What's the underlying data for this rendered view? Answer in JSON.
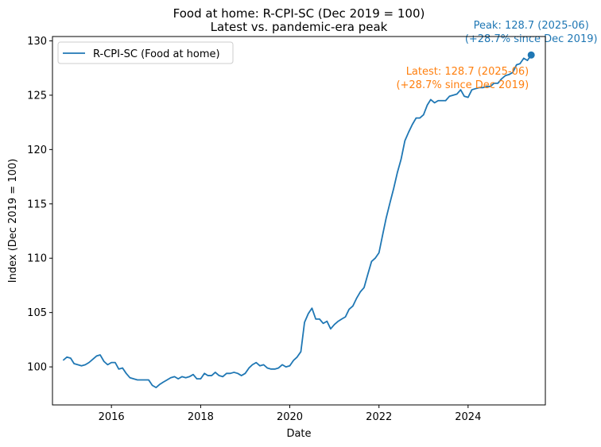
{
  "chart_data": {
    "type": "line",
    "title": "Food at home: R-CPI-SC (Dec 2019 = 100)",
    "subtitle": "Latest vs. pandemic-era peak",
    "xlabel": "Date",
    "ylabel": "Index (Dec 2019 = 100)",
    "xlim": [
      "2014-09-05",
      "2025-09-25"
    ],
    "ylim": [
      96.5,
      130.4
    ],
    "x_ticks": [
      {
        "date": "2016-01-01",
        "label": "2016"
      },
      {
        "date": "2018-01-01",
        "label": "2018"
      },
      {
        "date": "2020-01-01",
        "label": "2020"
      },
      {
        "date": "2022-01-01",
        "label": "2022"
      },
      {
        "date": "2024-01-01",
        "label": "2024"
      }
    ],
    "y_ticks": [
      {
        "value": 100,
        "label": "100"
      },
      {
        "value": 105,
        "label": "105"
      },
      {
        "value": 110,
        "label": "110"
      },
      {
        "value": 115,
        "label": "115"
      },
      {
        "value": 120,
        "label": "120"
      },
      {
        "value": 125,
        "label": "125"
      },
      {
        "value": 130,
        "label": "130"
      }
    ],
    "grid": false,
    "legend": {
      "position": "top-left",
      "entries": [
        "R-CPI-SC (Food at home)"
      ]
    },
    "series": [
      {
        "name": "R-CPI-SC (Food at home)",
        "color": "#1f77b4",
        "x": [
          "2014-12",
          "2015-01",
          "2015-02",
          "2015-03",
          "2015-04",
          "2015-05",
          "2015-06",
          "2015-07",
          "2015-08",
          "2015-09",
          "2015-10",
          "2015-11",
          "2015-12",
          "2016-01",
          "2016-02",
          "2016-03",
          "2016-04",
          "2016-05",
          "2016-06",
          "2016-07",
          "2016-08",
          "2016-09",
          "2016-10",
          "2016-11",
          "2016-12",
          "2017-01",
          "2017-02",
          "2017-03",
          "2017-04",
          "2017-05",
          "2017-06",
          "2017-07",
          "2017-08",
          "2017-09",
          "2017-10",
          "2017-11",
          "2017-12",
          "2018-01",
          "2018-02",
          "2018-03",
          "2018-04",
          "2018-05",
          "2018-06",
          "2018-07",
          "2018-08",
          "2018-09",
          "2018-10",
          "2018-11",
          "2018-12",
          "2019-01",
          "2019-02",
          "2019-03",
          "2019-04",
          "2019-05",
          "2019-06",
          "2019-07",
          "2019-08",
          "2019-09",
          "2019-10",
          "2019-11",
          "2019-12",
          "2020-01",
          "2020-02",
          "2020-03",
          "2020-04",
          "2020-05",
          "2020-06",
          "2020-07",
          "2020-08",
          "2020-09",
          "2020-10",
          "2020-11",
          "2020-12",
          "2021-01",
          "2021-02",
          "2021-03",
          "2021-04",
          "2021-05",
          "2021-06",
          "2021-07",
          "2021-08",
          "2021-09",
          "2021-10",
          "2021-11",
          "2021-12",
          "2022-01",
          "2022-02",
          "2022-03",
          "2022-04",
          "2022-05",
          "2022-06",
          "2022-07",
          "2022-08",
          "2022-09",
          "2022-10",
          "2022-11",
          "2022-12",
          "2023-01",
          "2023-02",
          "2023-03",
          "2023-04",
          "2023-05",
          "2023-06",
          "2023-07",
          "2023-08",
          "2023-09",
          "2023-10",
          "2023-11",
          "2023-12",
          "2024-01",
          "2024-02",
          "2024-03",
          "2024-04",
          "2024-05",
          "2024-06",
          "2024-07",
          "2024-08",
          "2024-09",
          "2024-10",
          "2024-11",
          "2024-12",
          "2025-01",
          "2025-02",
          "2025-03",
          "2025-04",
          "2025-05",
          "2025-06"
        ],
        "y": [
          100.6,
          100.9,
          100.8,
          100.3,
          100.2,
          100.1,
          100.2,
          100.4,
          100.7,
          101.0,
          101.1,
          100.5,
          100.2,
          100.4,
          100.4,
          99.8,
          99.9,
          99.4,
          99.0,
          98.9,
          98.8,
          98.8,
          98.8,
          98.8,
          98.3,
          98.1,
          98.4,
          98.6,
          98.8,
          99.0,
          99.1,
          98.9,
          99.1,
          99.0,
          99.1,
          99.3,
          98.9,
          98.9,
          99.4,
          99.2,
          99.2,
          99.5,
          99.2,
          99.1,
          99.4,
          99.4,
          99.5,
          99.4,
          99.2,
          99.4,
          99.9,
          100.2,
          100.4,
          100.1,
          100.2,
          99.9,
          99.8,
          99.8,
          99.9,
          100.2,
          100.0,
          100.1,
          100.6,
          100.9,
          101.4,
          104.1,
          104.9,
          105.4,
          104.4,
          104.4,
          104.0,
          104.2,
          103.5,
          103.9,
          104.2,
          104.4,
          104.6,
          105.3,
          105.6,
          106.3,
          106.9,
          107.3,
          108.5,
          109.7,
          110.0,
          110.5,
          112.2,
          113.7,
          115.1,
          116.4,
          117.9,
          119.1,
          120.8,
          121.6,
          122.3,
          122.9,
          122.9,
          123.2,
          124.1,
          124.6,
          124.3,
          124.5,
          124.5,
          124.5,
          124.9,
          125.0,
          125.1,
          125.5,
          124.9,
          124.8,
          125.5,
          125.6,
          125.7,
          125.7,
          125.8,
          125.8,
          126.1,
          126.1,
          126.5,
          126.8,
          126.9,
          127.1,
          127.8,
          127.9,
          128.4,
          128.2,
          128.7
        ]
      }
    ],
    "annotations": [
      {
        "kind": "peak",
        "date": "2025-06",
        "value": 128.7,
        "color": "#1f77b4",
        "lines": [
          "Peak: 128.7 (2025-06)",
          "(+28.7% since Dec 2019)"
        ]
      },
      {
        "kind": "latest",
        "date": "2025-06",
        "value": 128.7,
        "color": "#ff7f0e",
        "lines": [
          "Latest: 128.7 (2025-06)",
          "(+28.7% since Dec 2019)"
        ]
      }
    ]
  }
}
